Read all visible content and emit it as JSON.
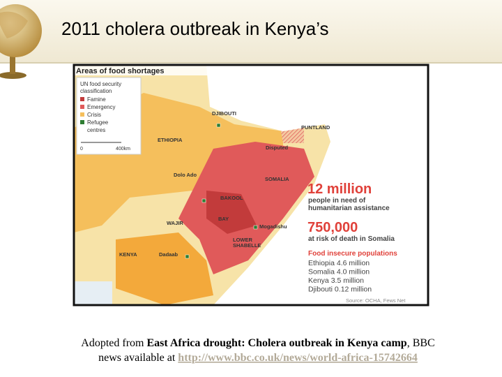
{
  "slide": {
    "title": "2011 cholera outbreak in Kenya’s"
  },
  "map": {
    "heading": "Areas of food shortages",
    "legend": {
      "title": [
        "UN food security",
        "classification"
      ],
      "items": [
        "Famine",
        "Emergency",
        "Crisis",
        "Refugee",
        "centres"
      ],
      "scale": [
        "0",
        "400km"
      ]
    },
    "labels": [
      "DJIBOUTI",
      "ETHIOPIA",
      "PUNTLAND",
      "Disputed",
      "SOMALIA",
      "Dolo Ado",
      "BAKOOL",
      "BAY",
      "WAJIR",
      "Mogadishu",
      "LOWER",
      "SHABELLE",
      "KENYA",
      "Dadaab"
    ],
    "stats": [
      {
        "number": "12 million",
        "lines": [
          "people in need of",
          "humanitarian assistance"
        ]
      },
      {
        "number": "750,000",
        "lines": [
          "at risk of death in Somalia"
        ]
      }
    ],
    "populations": {
      "title": "Food insecure populations",
      "rows": [
        "Ethiopia 4.6 million",
        "Somalia 4.0 million",
        "Kenya 3.5 million",
        "Djibouti 0.12 million"
      ]
    },
    "source": "Source: OCHA, Fews Net"
  },
  "caption": {
    "line1": [
      "Adopted from ",
      "East Africa drought: Cholera outbreak in Kenya camp",
      ", BBC"
    ],
    "line2": [
      "news available at ",
      "http://www.bbc.co.uk/news/world-africa-15742664"
    ]
  }
}
